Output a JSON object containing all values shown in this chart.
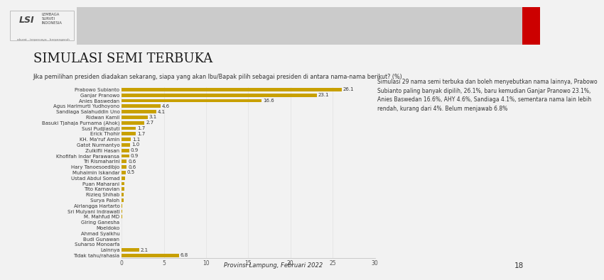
{
  "title": "SIMULASI SEMI TERBUKA",
  "subtitle": "Jika pemilihan presiden diadakan sekarang, siapa yang akan Ibu/Bapak pilih sebagai presiden di antara nama-nama berikut? (%)",
  "annotation": "Simulasi 29 nama semi terbuka dan boleh menyebutkan nama lainnya, Prabowo\nSubianto paling banyak dipilih, 26.1%, baru kemudian Ganjar Pranowo 23.1%,\nAnies Baswedan 16.6%, AHY 4.6%, Sandiaga 4.1%, sementara nama lain lebih\nrendah, kurang dari 4%. Belum menjawab 6.8%",
  "footer": "Provinsi Lampung, Februari 2022",
  "page_number": "18",
  "categories": [
    "Prabowo Subianto",
    "Ganjar Pranowo",
    "Anies Baswedan",
    "Agus Harimurti Yudhoyono",
    "Sandiaga Salahuddin Uno",
    "Ridwan Kamil",
    "Basuki Tjahaja Purnama (Ahok)",
    "Susi Pudjiastuti",
    "Erick Thohir",
    "KH. Ma'ruf Amin",
    "Gatot Nurmantyo",
    "Zulkifli Hasan",
    "Khofifah Indar Parawansa",
    "Tri Rismaharini",
    "Hary Tanoesoedibjo",
    "Muhaimin Iskandar",
    "Ustad Abdul Somad",
    "Puan Maharani",
    "Tito Karnavian",
    "Rizieq Shihab",
    "Surya Paloh",
    "Airlangga Hartarto",
    "Sri Mulyani Indrawati",
    "M. Mahfud MD",
    "Giring Ganesha",
    "Moeldoko",
    "Ahmad Syaikhu",
    "Budi Gunawan",
    "Suharso Monoarfa",
    "Lainnya",
    "Tidak tahu/rahasia"
  ],
  "values": [
    26.1,
    23.1,
    16.6,
    4.6,
    4.1,
    3.1,
    2.7,
    1.7,
    1.7,
    1.1,
    1.0,
    0.9,
    0.9,
    0.6,
    0.6,
    0.5,
    0.4,
    0.3,
    0.3,
    0.2,
    0.2,
    0.1,
    0.1,
    0.1,
    0.0,
    0.0,
    0.0,
    0.0,
    0.0,
    2.1,
    6.8
  ],
  "bar_color": "#C8A000",
  "xlim": [
    0,
    30
  ],
  "xticks": [
    0.0,
    5.0,
    10.0,
    15.0,
    20.0,
    25.0,
    30.0
  ],
  "bg_color": "#F2F2F2",
  "header_bg": "#CBCBCB",
  "red_accent": "#CC0000",
  "title_fontsize": 13,
  "subtitle_fontsize": 5.8,
  "bar_label_fontsize": 5.0,
  "category_fontsize": 5.0,
  "annotation_fontsize": 5.5,
  "footer_fontsize": 6.0,
  "tick_fontsize": 5.5
}
